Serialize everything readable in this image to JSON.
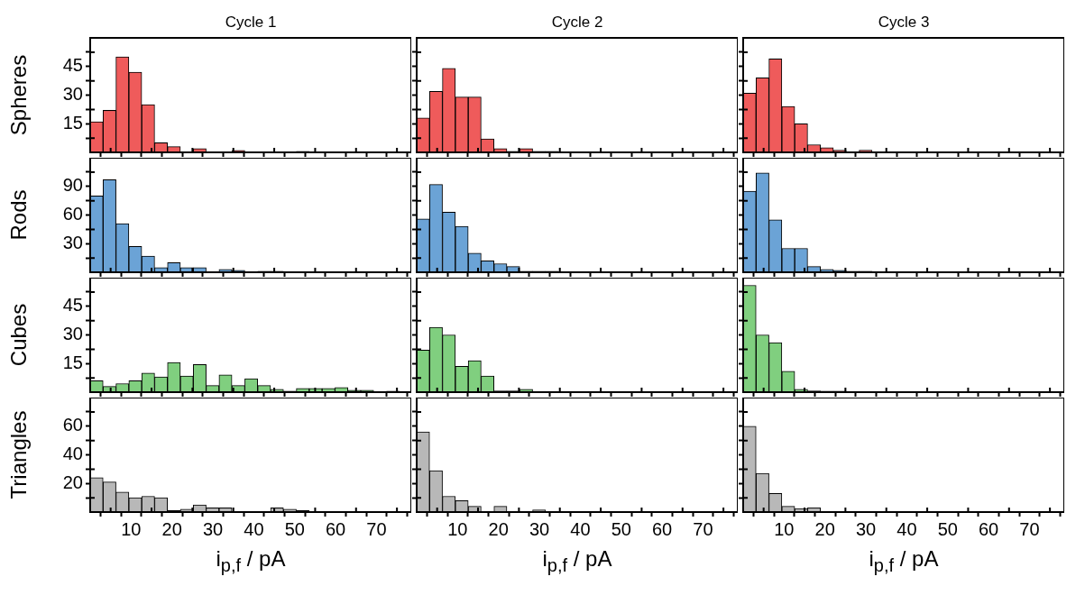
{
  "chart_data": [
    {
      "type": "histogram",
      "title": "Cycle 1",
      "ylabel": "Spheres",
      "color": "#ef5b5b",
      "tick_labels": "y",
      "xlim": [
        0,
        78.5
      ],
      "xticks": [
        {
          "value": 5,
          "label": null
        },
        10,
        {
          "value": 15,
          "label": null
        },
        20,
        {
          "value": 25,
          "label": null
        },
        30,
        {
          "value": 35,
          "label": null
        },
        40,
        {
          "value": 45,
          "label": null
        },
        50,
        {
          "value": 55,
          "label": null
        },
        60,
        {
          "value": 65,
          "label": null
        },
        70,
        {
          "value": 75,
          "label": null
        }
      ],
      "ylim": [
        0,
        60
      ],
      "yticks": [
        {
          "value": 7.5,
          "label": null
        },
        15,
        {
          "value": 22.5,
          "label": null
        },
        30,
        {
          "value": 37.5,
          "label": null
        },
        45,
        {
          "value": 52.5,
          "label": null
        }
      ],
      "bins": [
        0,
        3.15,
        6.3,
        9.45,
        12.6,
        15.75,
        18.9,
        22.05,
        25.2,
        28.35,
        31.5,
        34.65,
        37.8,
        40.95,
        44.1,
        47.25,
        50.4,
        53.55,
        56.7,
        59.85,
        63,
        66.15,
        69.3,
        72.45,
        75.6
      ],
      "values": [
        16,
        22,
        50,
        42,
        25,
        5,
        3,
        0,
        2,
        0,
        0,
        1,
        0,
        0,
        0,
        0,
        0.5,
        0,
        0,
        0,
        0,
        0,
        0,
        0
      ]
    },
    {
      "type": "histogram",
      "title": "Cycle 2",
      "color": "#ef5b5b",
      "tick_labels": false,
      "xlim": [
        0,
        78.5
      ],
      "xticks": [
        {
          "value": 5,
          "label": null
        },
        10,
        {
          "value": 15,
          "label": null
        },
        20,
        {
          "value": 25,
          "label": null
        },
        30,
        {
          "value": 35,
          "label": null
        },
        40,
        {
          "value": 45,
          "label": null
        },
        50,
        {
          "value": 55,
          "label": null
        },
        60,
        {
          "value": 65,
          "label": null
        },
        70,
        {
          "value": 75,
          "label": null
        }
      ],
      "ylim": [
        0,
        60
      ],
      "yticks": [
        {
          "value": 7.5,
          "label": null
        },
        15,
        {
          "value": 22.5,
          "label": null
        },
        30,
        {
          "value": 37.5,
          "label": null
        },
        45,
        {
          "value": 52.5,
          "label": null
        }
      ],
      "bins": [
        0,
        3.15,
        6.3,
        9.45,
        12.6,
        15.75,
        18.9,
        22.05,
        25.2,
        28.35,
        31.5,
        34.65,
        37.8,
        40.95,
        44.1,
        47.25,
        50.4,
        53.55,
        56.7,
        59.85,
        63,
        66.15,
        69.3,
        72.45,
        75.6
      ],
      "values": [
        18,
        32,
        44,
        29,
        29,
        7,
        2,
        0.5,
        2,
        0.5,
        0.5,
        0.3,
        0,
        0,
        0,
        0,
        0,
        0,
        0,
        0,
        0,
        0,
        0,
        0
      ]
    },
    {
      "type": "histogram",
      "title": "Cycle 3",
      "color": "#ef5b5b",
      "tick_labels": false,
      "xlim": [
        0,
        78.5
      ],
      "xticks": [
        {
          "value": 5,
          "label": null
        },
        10,
        {
          "value": 15,
          "label": null
        },
        20,
        {
          "value": 25,
          "label": null
        },
        30,
        {
          "value": 35,
          "label": null
        },
        40,
        {
          "value": 45,
          "label": null
        },
        50,
        {
          "value": 55,
          "label": null
        },
        60,
        {
          "value": 65,
          "label": null
        },
        70,
        {
          "value": 75,
          "label": null
        }
      ],
      "ylim": [
        0,
        60
      ],
      "yticks": [
        {
          "value": 7.5,
          "label": null
        },
        15,
        {
          "value": 22.5,
          "label": null
        },
        30,
        {
          "value": 37.5,
          "label": null
        },
        45,
        {
          "value": 52.5,
          "label": null
        }
      ],
      "bins": [
        0,
        3.15,
        6.3,
        9.45,
        12.6,
        15.75,
        18.9,
        22.05,
        25.2,
        28.35,
        31.5,
        34.65,
        37.8,
        40.95,
        44.1,
        47.25,
        50.4,
        53.55,
        56.7,
        59.85,
        63,
        66.15,
        69.3,
        72.45,
        75.6
      ],
      "values": [
        31,
        39,
        49,
        24,
        15,
        4,
        2.4,
        1.2,
        0,
        1.2,
        0,
        0,
        0,
        0,
        0,
        0,
        0,
        0,
        0,
        0,
        0,
        0,
        0,
        0
      ]
    },
    {
      "type": "histogram",
      "ylabel": "Rods",
      "color": "#6ba3d6",
      "tick_labels": "y",
      "xlim": [
        0,
        78.5
      ],
      "xticks": [
        {
          "value": 5,
          "label": null
        },
        10,
        {
          "value": 15,
          "label": null
        },
        20,
        {
          "value": 25,
          "label": null
        },
        30,
        {
          "value": 35,
          "label": null
        },
        40,
        {
          "value": 45,
          "label": null
        },
        50,
        {
          "value": 55,
          "label": null
        },
        60,
        {
          "value": 65,
          "label": null
        },
        70,
        {
          "value": 75,
          "label": null
        }
      ],
      "ylim": [
        0,
        120
      ],
      "yticks": [
        {
          "value": 15,
          "label": null
        },
        30,
        {
          "value": 45,
          "label": null
        },
        60,
        {
          "value": 75,
          "label": null
        },
        90,
        {
          "value": 105,
          "label": null
        }
      ],
      "bins": [
        0,
        3.15,
        6.3,
        9.45,
        12.6,
        15.75,
        18.9,
        22.05,
        25.2,
        28.35,
        31.5,
        34.65,
        37.8,
        40.95,
        44.1,
        47.25,
        50.4,
        53.55,
        56.7,
        59.85,
        63,
        66.15,
        69.3,
        72.45,
        75.6
      ],
      "values": [
        80,
        97,
        51,
        27,
        17,
        5,
        10,
        5,
        5,
        0,
        3,
        2,
        0,
        1,
        1,
        0,
        0,
        0,
        0,
        0,
        0,
        0,
        0,
        0
      ]
    },
    {
      "type": "histogram",
      "color": "#6ba3d6",
      "tick_labels": false,
      "xlim": [
        0,
        78.5
      ],
      "xticks": [
        {
          "value": 5,
          "label": null
        },
        10,
        {
          "value": 15,
          "label": null
        },
        20,
        {
          "value": 25,
          "label": null
        },
        30,
        {
          "value": 35,
          "label": null
        },
        40,
        {
          "value": 45,
          "label": null
        },
        50,
        {
          "value": 55,
          "label": null
        },
        60,
        {
          "value": 65,
          "label": null
        },
        70,
        {
          "value": 75,
          "label": null
        }
      ],
      "ylim": [
        0,
        120
      ],
      "yticks": [
        {
          "value": 15,
          "label": null
        },
        30,
        {
          "value": 45,
          "label": null
        },
        60,
        {
          "value": 75,
          "label": null
        },
        90,
        {
          "value": 105,
          "label": null
        }
      ],
      "bins": [
        0,
        3.15,
        6.3,
        9.45,
        12.6,
        15.75,
        18.9,
        22.05,
        25.2,
        28.35,
        31.5,
        34.65,
        37.8,
        40.95,
        44.1,
        47.25,
        50.4,
        53.55,
        56.7,
        59.85,
        63,
        66.15,
        69.3,
        72.45,
        75.6
      ],
      "values": [
        56,
        92,
        63,
        48,
        20,
        12,
        9,
        6,
        1,
        1,
        1,
        0,
        0,
        0,
        0,
        0,
        0,
        0,
        0,
        0,
        0,
        0,
        0,
        0
      ]
    },
    {
      "type": "histogram",
      "color": "#6ba3d6",
      "tick_labels": false,
      "xlim": [
        0,
        78.5
      ],
      "xticks": [
        {
          "value": 5,
          "label": null
        },
        10,
        {
          "value": 15,
          "label": null
        },
        20,
        {
          "value": 25,
          "label": null
        },
        30,
        {
          "value": 35,
          "label": null
        },
        40,
        {
          "value": 45,
          "label": null
        },
        50,
        {
          "value": 55,
          "label": null
        },
        60,
        {
          "value": 65,
          "label": null
        },
        70,
        {
          "value": 75,
          "label": null
        }
      ],
      "ylim": [
        0,
        120
      ],
      "yticks": [
        {
          "value": 15,
          "label": null
        },
        30,
        {
          "value": 45,
          "label": null
        },
        60,
        {
          "value": 75,
          "label": null
        },
        90,
        {
          "value": 105,
          "label": null
        }
      ],
      "bins": [
        0,
        3.15,
        6.3,
        9.45,
        12.6,
        15.75,
        18.9,
        22.05,
        25.2,
        28.35,
        31.5,
        34.65,
        37.8,
        40.95,
        44.1,
        47.25,
        50.4,
        53.55,
        56.7,
        59.85,
        63,
        66.15,
        69.3,
        72.45,
        75.6
      ],
      "values": [
        85,
        104,
        55,
        25,
        25,
        6,
        3,
        2,
        1,
        1,
        0,
        0,
        0,
        0,
        0,
        0,
        0,
        0,
        0,
        0,
        0,
        0,
        0,
        0
      ]
    },
    {
      "type": "histogram",
      "ylabel": "Cubes",
      "color": "#80cf7f",
      "tick_labels": "y",
      "xlim": [
        0,
        78.5
      ],
      "xticks": [
        {
          "value": 5,
          "label": null
        },
        10,
        {
          "value": 15,
          "label": null
        },
        20,
        {
          "value": 25,
          "label": null
        },
        30,
        {
          "value": 35,
          "label": null
        },
        40,
        {
          "value": 45,
          "label": null
        },
        50,
        {
          "value": 55,
          "label": null
        },
        60,
        {
          "value": 65,
          "label": null
        },
        70,
        {
          "value": 75,
          "label": null
        }
      ],
      "ylim": [
        0,
        60
      ],
      "yticks": [
        {
          "value": 7.5,
          "label": null
        },
        15,
        {
          "value": 22.5,
          "label": null
        },
        30,
        {
          "value": 37.5,
          "label": null
        },
        45,
        {
          "value": 52.5,
          "label": null
        }
      ],
      "bins": [
        0,
        3.15,
        6.3,
        9.45,
        12.6,
        15.75,
        18.9,
        22.05,
        25.2,
        28.35,
        31.5,
        34.65,
        37.8,
        40.95,
        44.1,
        47.25,
        50.4,
        53.55,
        56.7,
        59.85,
        63,
        66.15,
        69.3,
        72.45,
        75.6
      ],
      "values": [
        6,
        3,
        4.5,
        6,
        10,
        8,
        15.5,
        8.5,
        14.5,
        3.5,
        9,
        3.5,
        7,
        3.5,
        1.5,
        0.5,
        2,
        2,
        2,
        2.5,
        1,
        1,
        0,
        0.5
      ]
    },
    {
      "type": "histogram",
      "color": "#80cf7f",
      "tick_labels": false,
      "xlim": [
        0,
        78.5
      ],
      "xticks": [
        {
          "value": 5,
          "label": null
        },
        10,
        {
          "value": 15,
          "label": null
        },
        20,
        {
          "value": 25,
          "label": null
        },
        30,
        {
          "value": 35,
          "label": null
        },
        40,
        {
          "value": 45,
          "label": null
        },
        50,
        {
          "value": 55,
          "label": null
        },
        60,
        {
          "value": 65,
          "label": null
        },
        70,
        {
          "value": 75,
          "label": null
        }
      ],
      "ylim": [
        0,
        60
      ],
      "yticks": [
        {
          "value": 7.5,
          "label": null
        },
        15,
        {
          "value": 22.5,
          "label": null
        },
        30,
        {
          "value": 37.5,
          "label": null
        },
        45,
        {
          "value": 52.5,
          "label": null
        }
      ],
      "bins": [
        0,
        3.15,
        6.3,
        9.45,
        12.6,
        15.75,
        18.9,
        22.05,
        25.2,
        28.35,
        31.5,
        34.65,
        37.8,
        40.95,
        44.1,
        47.25,
        50.4,
        53.55,
        56.7,
        59.85,
        63,
        66.15,
        69.3,
        72.45,
        75.6
      ],
      "values": [
        22,
        34,
        30,
        13.5,
        16.5,
        8.5,
        0.7,
        0.7,
        1.5,
        0,
        0,
        0,
        0,
        0,
        0,
        0,
        0,
        0,
        0,
        0,
        0,
        0,
        0,
        0
      ]
    },
    {
      "type": "histogram",
      "color": "#80cf7f",
      "tick_labels": false,
      "xlim": [
        0,
        78.5
      ],
      "xticks": [
        {
          "value": 5,
          "label": null
        },
        10,
        {
          "value": 15,
          "label": null
        },
        20,
        {
          "value": 25,
          "label": null
        },
        30,
        {
          "value": 35,
          "label": null
        },
        40,
        {
          "value": 45,
          "label": null
        },
        50,
        {
          "value": 55,
          "label": null
        },
        60,
        {
          "value": 65,
          "label": null
        },
        70,
        {
          "value": 75,
          "label": null
        }
      ],
      "ylim": [
        0,
        60
      ],
      "yticks": [
        {
          "value": 7.5,
          "label": null
        },
        15,
        {
          "value": 22.5,
          "label": null
        },
        30,
        {
          "value": 37.5,
          "label": null
        },
        45,
        {
          "value": 52.5,
          "label": null
        }
      ],
      "bins": [
        0,
        3.15,
        6.3,
        9.45,
        12.6,
        15.75,
        18.9,
        22.05,
        25.2,
        28.35,
        31.5,
        34.65,
        37.8,
        40.95,
        44.1,
        47.25,
        50.4,
        53.55,
        56.7,
        59.85,
        63,
        66.15,
        69.3,
        72.45,
        75.6
      ],
      "values": [
        56,
        30,
        26,
        11,
        1.5,
        0.7,
        0.5,
        0.5,
        0.3,
        0,
        0,
        0,
        0,
        0,
        0,
        0,
        0,
        0,
        0,
        0,
        0,
        0,
        0,
        0
      ]
    },
    {
      "type": "histogram",
      "ylabel": "Triangles",
      "xlabel": "i$_{p,f}$ / pA",
      "color": "#b8b8b8",
      "xlim": [
        0,
        78.5
      ],
      "xticks": [
        {
          "value": 5,
          "label": null
        },
        10,
        {
          "value": 15,
          "label": null
        },
        20,
        {
          "value": 25,
          "label": null
        },
        30,
        {
          "value": 35,
          "label": null
        },
        40,
        {
          "value": 45,
          "label": null
        },
        50,
        {
          "value": 55,
          "label": null
        },
        60,
        {
          "value": 65,
          "label": null
        },
        70,
        {
          "value": 75,
          "label": null
        }
      ],
      "ylim": [
        0,
        80
      ],
      "yticks": [
        {
          "value": 10,
          "label": null
        },
        20,
        {
          "value": 30,
          "label": null
        },
        40,
        {
          "value": 50,
          "label": null
        },
        60,
        {
          "value": 70,
          "label": null
        }
      ],
      "bins": [
        0,
        3.15,
        6.3,
        9.45,
        12.6,
        15.75,
        18.9,
        22.05,
        25.2,
        28.35,
        31.5,
        34.65,
        37.8,
        40.95,
        44.1,
        47.25,
        50.4,
        53.55,
        56.7,
        59.85,
        63,
        66.15,
        69.3,
        72.45,
        75.6
      ],
      "values": [
        24,
        21,
        14,
        10,
        11,
        10,
        1,
        2,
        5,
        3,
        3,
        0,
        0.3,
        0.3,
        3,
        2,
        1,
        0.5,
        0.3,
        0.3,
        0.3,
        0.3,
        0.3,
        0
      ]
    },
    {
      "type": "histogram",
      "xlabel": "i$_{p,f}$ / pA",
      "color": "#b8b8b8",
      "tick_labels": "x",
      "xlim": [
        0,
        78.5
      ],
      "xticks": [
        {
          "value": 5,
          "label": null
        },
        10,
        {
          "value": 15,
          "label": null
        },
        20,
        {
          "value": 25,
          "label": null
        },
        30,
        {
          "value": 35,
          "label": null
        },
        40,
        {
          "value": 45,
          "label": null
        },
        50,
        {
          "value": 55,
          "label": null
        },
        60,
        {
          "value": 65,
          "label": null
        },
        70,
        {
          "value": 75,
          "label": null
        }
      ],
      "ylim": [
        0,
        80
      ],
      "yticks": [
        {
          "value": 10,
          "label": null
        },
        20,
        {
          "value": 30,
          "label": null
        },
        40,
        {
          "value": 50,
          "label": null
        },
        60,
        {
          "value": 70,
          "label": null
        }
      ],
      "bins": [
        0,
        3.15,
        6.3,
        9.45,
        12.6,
        15.75,
        18.9,
        22.05,
        25.2,
        28.35,
        31.5,
        34.65,
        37.8,
        40.95,
        44.1,
        47.25,
        50.4,
        53.55,
        56.7,
        59.85,
        63,
        66.15,
        69.3,
        72.45,
        75.6
      ],
      "values": [
        56,
        29,
        11,
        8,
        4,
        0,
        4,
        0,
        0,
        1.5,
        0,
        0,
        0,
        0,
        0,
        0,
        0,
        0,
        0,
        0,
        0,
        0,
        0,
        0
      ]
    },
    {
      "type": "histogram",
      "xlabel": "i$_{p,f}$ / pA",
      "color": "#b8b8b8",
      "tick_labels": "x",
      "xlim": [
        0,
        78.5
      ],
      "xticks": [
        {
          "value": 5,
          "label": null
        },
        10,
        {
          "value": 15,
          "label": null
        },
        20,
        {
          "value": 25,
          "label": null
        },
        30,
        {
          "value": 35,
          "label": null
        },
        40,
        {
          "value": 45,
          "label": null
        },
        50,
        {
          "value": 55,
          "label": null
        },
        60,
        {
          "value": 65,
          "label": null
        },
        70,
        {
          "value": 75,
          "label": null
        }
      ],
      "ylim": [
        0,
        80
      ],
      "yticks": [
        {
          "value": 10,
          "label": null
        },
        20,
        {
          "value": 30,
          "label": null
        },
        40,
        {
          "value": 50,
          "label": null
        },
        60,
        {
          "value": 70,
          "label": null
        }
      ],
      "bins": [
        0,
        3.15,
        6.3,
        9.45,
        12.6,
        15.75,
        18.9,
        22.05,
        25.2,
        28.35,
        31.5,
        34.65,
        37.8,
        40.95,
        44.1,
        47.25,
        50.4,
        53.55,
        56.7,
        59.85,
        63,
        66.15,
        69.3,
        72.45,
        75.6
      ],
      "values": [
        60,
        27,
        13,
        4,
        2.5,
        3,
        0.5,
        0.3,
        0.3,
        0,
        0,
        0,
        0,
        0,
        0,
        0,
        0,
        0,
        0,
        0,
        0,
        0,
        0,
        0
      ]
    }
  ]
}
